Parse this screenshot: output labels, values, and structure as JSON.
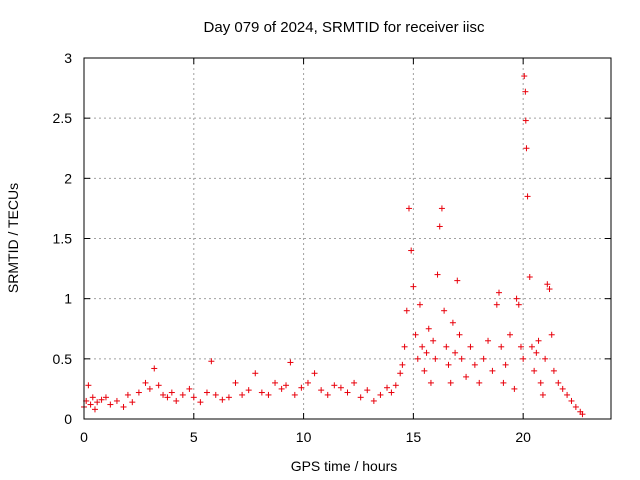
{
  "chart_data": {
    "type": "scatter",
    "title": "Day 079 of 2024, SRMTID for receiver iisc",
    "xlabel": "GPS time / hours",
    "ylabel": "SRMTID / TECUs",
    "xlim": [
      0,
      24
    ],
    "ylim": [
      0,
      3
    ],
    "xticks": [
      0,
      5,
      10,
      15,
      20
    ],
    "yticks": [
      0,
      0.5,
      1,
      1.5,
      2,
      2.5,
      3
    ],
    "xtick_labels": [
      "0",
      "5",
      "10",
      "15",
      "20"
    ],
    "ytick_labels": [
      "0",
      "0.5",
      "1",
      "1.5",
      "2",
      "2.5",
      "3"
    ],
    "grid": true,
    "marker": "plus",
    "color": "#e8000b",
    "series": [
      {
        "name": "SRMTID",
        "x": [
          0.0,
          0.1,
          0.2,
          0.3,
          0.4,
          0.5,
          0.6,
          0.8,
          1.0,
          1.2,
          1.5,
          1.8,
          2.0,
          2.2,
          2.5,
          2.8,
          3.0,
          3.2,
          3.4,
          3.6,
          3.8,
          4.0,
          4.2,
          4.5,
          4.8,
          5.0,
          5.3,
          5.6,
          5.8,
          6.0,
          6.3,
          6.6,
          6.9,
          7.2,
          7.5,
          7.8,
          8.1,
          8.4,
          8.7,
          9.0,
          9.2,
          9.4,
          9.6,
          9.9,
          10.2,
          10.5,
          10.8,
          11.1,
          11.4,
          11.7,
          12.0,
          12.3,
          12.6,
          12.9,
          13.2,
          13.5,
          13.8,
          14.0,
          14.2,
          14.4,
          14.5,
          14.6,
          14.7,
          14.8,
          14.9,
          15.0,
          15.1,
          15.2,
          15.3,
          15.4,
          15.5,
          15.6,
          15.7,
          15.8,
          15.9,
          16.0,
          16.1,
          16.2,
          16.3,
          16.4,
          16.5,
          16.6,
          16.7,
          16.8,
          16.9,
          17.0,
          17.1,
          17.2,
          17.4,
          17.6,
          17.8,
          18.0,
          18.2,
          18.4,
          18.6,
          18.8,
          18.9,
          19.0,
          19.1,
          19.2,
          19.4,
          19.6,
          19.7,
          19.8,
          19.9,
          20.0,
          20.05,
          20.1,
          20.12,
          20.15,
          20.2,
          20.3,
          20.4,
          20.5,
          20.6,
          20.7,
          20.8,
          20.9,
          21.0,
          21.1,
          21.2,
          21.3,
          21.4,
          21.6,
          21.8,
          22.0,
          22.2,
          22.4,
          22.6,
          22.7
        ],
        "y": [
          0.1,
          0.15,
          0.28,
          0.12,
          0.18,
          0.08,
          0.14,
          0.16,
          0.18,
          0.12,
          0.15,
          0.1,
          0.2,
          0.14,
          0.22,
          0.3,
          0.25,
          0.42,
          0.28,
          0.2,
          0.18,
          0.22,
          0.15,
          0.2,
          0.25,
          0.18,
          0.14,
          0.22,
          0.48,
          0.2,
          0.16,
          0.18,
          0.3,
          0.2,
          0.24,
          0.38,
          0.22,
          0.2,
          0.3,
          0.25,
          0.28,
          0.47,
          0.2,
          0.26,
          0.3,
          0.38,
          0.24,
          0.2,
          0.28,
          0.26,
          0.22,
          0.3,
          0.18,
          0.24,
          0.15,
          0.2,
          0.26,
          0.22,
          0.28,
          0.38,
          0.45,
          0.6,
          0.9,
          1.75,
          1.4,
          1.1,
          0.7,
          0.5,
          0.95,
          0.6,
          0.4,
          0.55,
          0.75,
          0.3,
          0.65,
          0.5,
          1.2,
          1.6,
          1.75,
          0.9,
          0.6,
          0.45,
          0.3,
          0.8,
          0.55,
          1.15,
          0.7,
          0.5,
          0.35,
          0.6,
          0.45,
          0.3,
          0.5,
          0.65,
          0.4,
          0.95,
          1.05,
          0.6,
          0.3,
          0.45,
          0.7,
          0.25,
          1.0,
          0.95,
          0.6,
          0.5,
          2.85,
          2.72,
          2.48,
          2.25,
          1.85,
          1.18,
          0.6,
          0.4,
          0.55,
          0.65,
          0.3,
          0.2,
          0.5,
          1.12,
          1.08,
          0.7,
          0.4,
          0.3,
          0.25,
          0.2,
          0.15,
          0.1,
          0.06,
          0.04
        ]
      }
    ]
  }
}
